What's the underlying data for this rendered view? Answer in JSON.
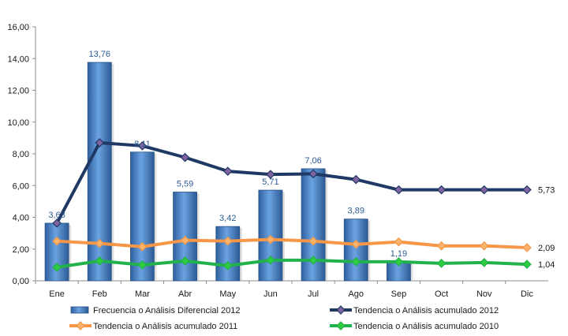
{
  "chart_data": {
    "type": "bar",
    "categories": [
      "Ene",
      "Feb",
      "Mar",
      "Abr",
      "May",
      "Jun",
      "Jul",
      "Ago",
      "Sep",
      "Oct",
      "Nov",
      "Dic"
    ],
    "ylim": [
      0,
      16
    ],
    "yticks": [
      "0,00",
      "2,00",
      "4,00",
      "6,00",
      "8,00",
      "10,00",
      "12,00",
      "14,00",
      "16,00"
    ],
    "grid": false,
    "legend_position": "bottom",
    "series": [
      {
        "name": "Frecuencia o Análisis Diferencial 2012",
        "type": "bar",
        "color": "#4a86c8",
        "values": [
          3.63,
          13.76,
          8.11,
          5.59,
          3.42,
          5.71,
          7.06,
          3.89,
          1.19,
          null,
          null,
          null
        ],
        "labels": [
          "3,63",
          "13,76",
          "8,11",
          "5,59",
          "3,42",
          "5,71",
          "7,06",
          "3,89",
          "1,19",
          "",
          "",
          ""
        ]
      },
      {
        "name": "Tendencia o Análisis acumulado 2012",
        "type": "line",
        "color": "#1f3864",
        "marker_color": "#8064a2",
        "values": [
          3.63,
          8.7,
          8.5,
          7.77,
          6.9,
          6.7,
          6.74,
          6.38,
          5.73,
          5.73,
          5.73,
          5.73
        ],
        "end_label": "5,73"
      },
      {
        "name": "Tendencia o Análisis acumulado 2011",
        "type": "line",
        "color": "#f79646",
        "marker_color": "#f9b36b",
        "values": [
          2.5,
          2.35,
          2.15,
          2.55,
          2.5,
          2.6,
          2.5,
          2.3,
          2.45,
          2.2,
          2.2,
          2.09
        ],
        "end_label": "2,09"
      },
      {
        "name": "Tendencia o Análisis acumulado 2010",
        "type": "line",
        "color": "#22b14c",
        "marker_color": "#2ecc40",
        "values": [
          0.85,
          1.25,
          1.0,
          1.25,
          0.95,
          1.3,
          1.3,
          1.2,
          1.2,
          1.1,
          1.15,
          1.04
        ],
        "end_label": "1,04"
      }
    ]
  }
}
